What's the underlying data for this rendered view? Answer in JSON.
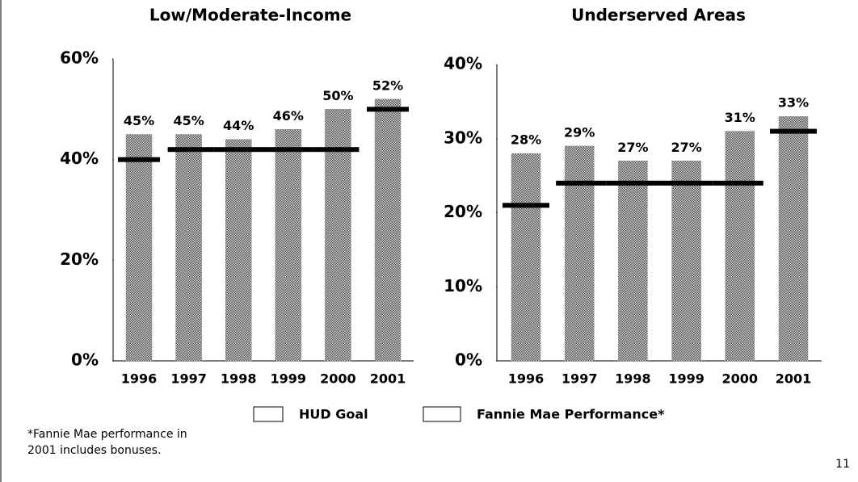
{
  "chart_data": [
    {
      "type": "bar",
      "title": "Low/Moderate-Income",
      "categories": [
        "1996",
        "1997",
        "1998",
        "1999",
        "2000",
        "2001"
      ],
      "series": [
        {
          "name": "HUD Goal",
          "type": "goal",
          "color": "#000000",
          "values": [
            40,
            42,
            42,
            42,
            42,
            50
          ]
        },
        {
          "name": "Fannie Mae Performance*",
          "type": "bar",
          "color": "#8a8a8a",
          "values": [
            45,
            45,
            44,
            46,
            50,
            52
          ],
          "value_labels": [
            "45%",
            "45%",
            "44%",
            "46%",
            "50%",
            "52%"
          ]
        }
      ],
      "ylim": [
        0,
        60
      ],
      "yticks": [
        {
          "value": 0,
          "label": "0%"
        },
        {
          "value": 20,
          "label": "20%"
        },
        {
          "value": 40,
          "label": "40%"
        },
        {
          "value": 60,
          "label": "60%"
        }
      ],
      "grid": false
    },
    {
      "type": "bar",
      "title": "Underserved Areas",
      "categories": [
        "1996",
        "1997",
        "1998",
        "1999",
        "2000",
        "2001"
      ],
      "series": [
        {
          "name": "HUD Goal",
          "type": "goal",
          "color": "#000000",
          "values": [
            21,
            24,
            24,
            24,
            24,
            31
          ]
        },
        {
          "name": "Fannie Mae Performance*",
          "type": "bar",
          "color": "#8a8a8a",
          "values": [
            28,
            29,
            27,
            27,
            31,
            33
          ],
          "value_labels": [
            "28%",
            "29%",
            "27%",
            "27%",
            "31%",
            "33%"
          ]
        }
      ],
      "ylim": [
        0,
        40
      ],
      "yticks": [
        {
          "value": 0,
          "label": "0%"
        },
        {
          "value": 10,
          "label": "10%"
        },
        {
          "value": 20,
          "label": "20%"
        },
        {
          "value": 30,
          "label": "30%"
        },
        {
          "value": 40,
          "label": "40%"
        }
      ],
      "grid": false
    }
  ],
  "footnote": [
    "*Fannie Mae performance in",
    "2001 includes bonuses."
  ],
  "page_number": "11"
}
